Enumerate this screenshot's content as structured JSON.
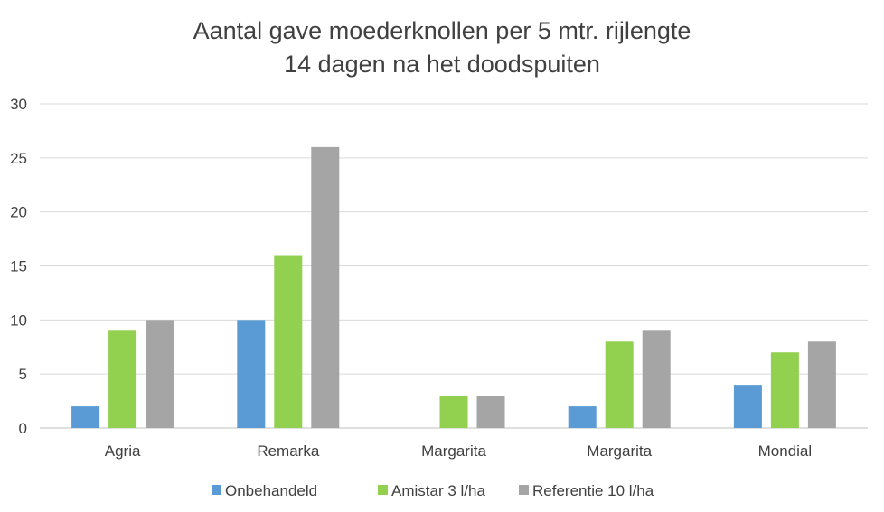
{
  "chart_data": {
    "type": "bar",
    "title": [
      "Aantal gave moederknollen per 5 mtr. rijlengte",
      "14 dagen na het doodspuiten"
    ],
    "xlabel": "",
    "ylabel": "",
    "ylim": [
      0,
      30
    ],
    "yticks": [
      0,
      5,
      10,
      15,
      20,
      25,
      30
    ],
    "grid": true,
    "legend_position": "bottom",
    "categories": [
      "Agria",
      "Remarka",
      "Margarita",
      "Margarita",
      "Mondial"
    ],
    "series": [
      {
        "name": "Onbehandeld",
        "color": "#5b9bd5",
        "values": [
          2,
          10,
          0,
          2,
          4
        ]
      },
      {
        "name": "Amistar 3 l/ha",
        "color": "#92d050",
        "values": [
          9,
          16,
          3,
          8,
          7
        ]
      },
      {
        "name": "Referentie 10 l/ha",
        "color": "#a5a5a5",
        "values": [
          10,
          26,
          3,
          9,
          8
        ]
      }
    ]
  }
}
